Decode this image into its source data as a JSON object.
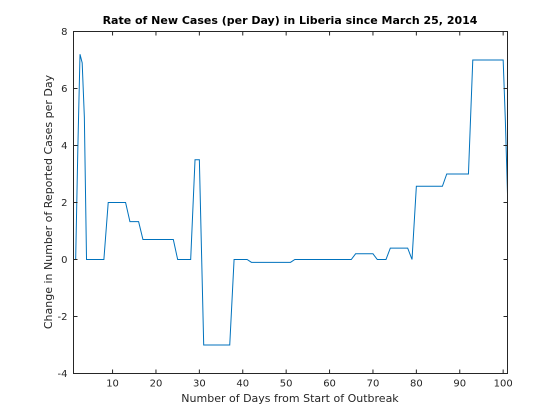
{
  "chart_data": {
    "type": "line",
    "title": "Rate of New Cases (per Day) in Liberia since March 25, 2014",
    "xlabel": "Number of Days from Start of Outbreak",
    "ylabel": "Change in Number of Reported Cases per Day",
    "xlim": [
      1,
      101
    ],
    "ylim": [
      -4,
      8
    ],
    "xticks": [
      10,
      20,
      30,
      40,
      50,
      60,
      70,
      80,
      90,
      100
    ],
    "yticks": [
      -4,
      -2,
      0,
      2,
      4,
      6,
      8
    ],
    "grid": false,
    "line_color": "#0072BD",
    "series": [
      {
        "x": [
          1,
          1.5,
          2,
          2.5,
          3,
          3.5,
          4,
          8,
          9,
          13,
          14,
          16,
          17,
          24,
          25,
          27.5,
          28,
          29,
          30,
          31,
          37,
          38,
          41,
          42,
          51,
          52,
          65,
          66,
          70,
          71,
          73,
          74,
          78,
          79,
          80,
          86,
          87,
          92,
          93,
          100,
          100.5,
          101
        ],
        "y": [
          0,
          0,
          3.9,
          7.2,
          6.9,
          5.0,
          0,
          0,
          2.0,
          2.0,
          1.33,
          1.33,
          0.7,
          0.7,
          0,
          0,
          0,
          3.5,
          3.5,
          -3.0,
          -3.0,
          0,
          0,
          -0.1,
          -0.1,
          0,
          0,
          0.2,
          0.2,
          0,
          0,
          0.4,
          0.4,
          0,
          2.57,
          2.57,
          3.0,
          3.0,
          7.0,
          7.0,
          4.9,
          2.3
        ]
      }
    ]
  }
}
